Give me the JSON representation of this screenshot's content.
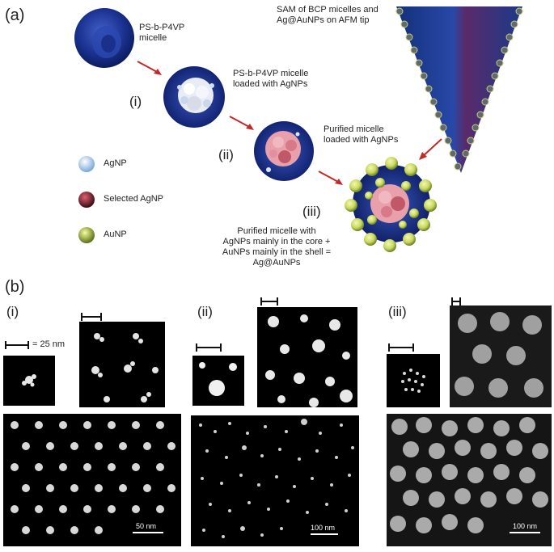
{
  "panel_a": {
    "label": "(a)",
    "step_labels": [
      "(i)",
      "(ii)",
      "(iii)"
    ],
    "captions": {
      "micelle": "PS-b-P4VP\nmicelle",
      "loaded": "PS-b-P4VP micelle\nloaded with AgNPs",
      "purified": "Purified micelle\nloaded with AgNPs",
      "sam": "SAM of BCP micelles and\nAg@AuNPs on AFM tip",
      "final": "Purified micelle with\nAgNPs mainly in the core +\nAuNPs mainly in the shell =\nAg@AuNPs"
    },
    "legend": [
      {
        "label": "AgNP",
        "color": "#bcd8f0"
      },
      {
        "label": "Selected AgNP",
        "color": "#b83040"
      },
      {
        "label": "AuNP",
        "color": "#c8d870"
      }
    ]
  },
  "panel_b": {
    "label": "(b)",
    "columns": [
      {
        "label": "(i)",
        "inset_scale": "= 25 nm",
        "main_scale": "50 nm"
      },
      {
        "label": "(ii)",
        "inset_scale": "",
        "main_scale": "100 nm"
      },
      {
        "label": "(iii)",
        "inset_scale": "",
        "main_scale": "100 nm"
      }
    ]
  },
  "colors": {
    "micelle_blue": "#1a3a9a",
    "arrow_red": "#c62828",
    "tip_blue": "#1a3a8a"
  }
}
